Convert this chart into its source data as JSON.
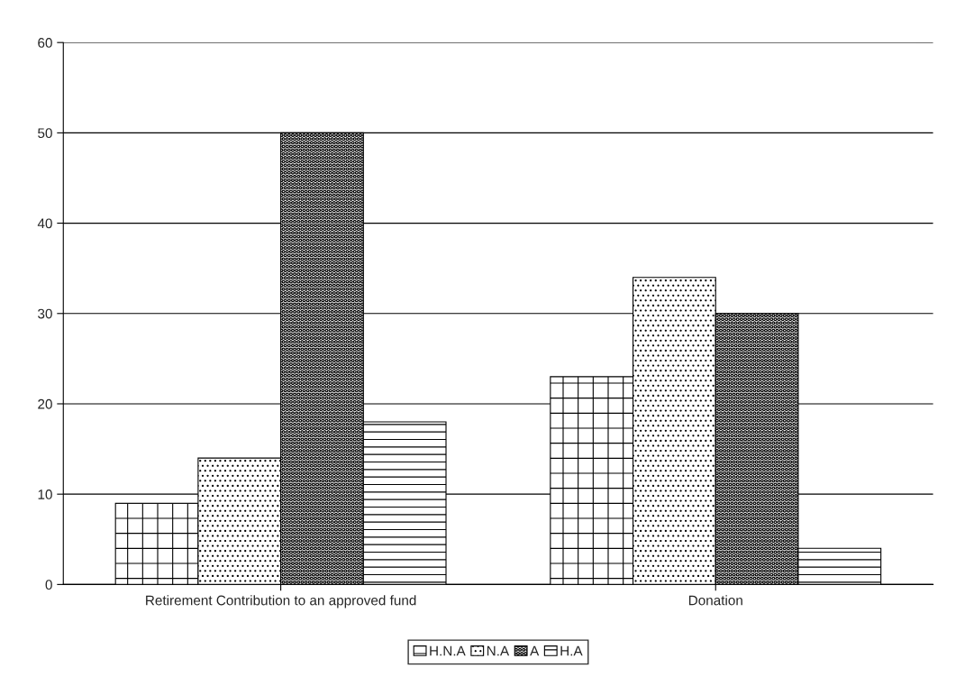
{
  "chart_data": {
    "type": "bar",
    "categories": [
      "Retirement Contribution to an approved fund",
      "Donation"
    ],
    "series": [
      {
        "name": "H.N.A",
        "color": "#000000",
        "values": [
          9,
          23
        ]
      },
      {
        "name": "N.A",
        "color": "#000000",
        "values": [
          14,
          34
        ]
      },
      {
        "name": "A",
        "color": "#000000",
        "values": [
          50,
          30
        ]
      },
      {
        "name": "H.A",
        "color": "#000000",
        "values": [
          18,
          4
        ]
      }
    ],
    "ylim": [
      0,
      60
    ],
    "yticks": [
      0,
      10,
      20,
      30,
      40,
      50,
      60
    ],
    "grid": "y",
    "legend": "bottom"
  }
}
